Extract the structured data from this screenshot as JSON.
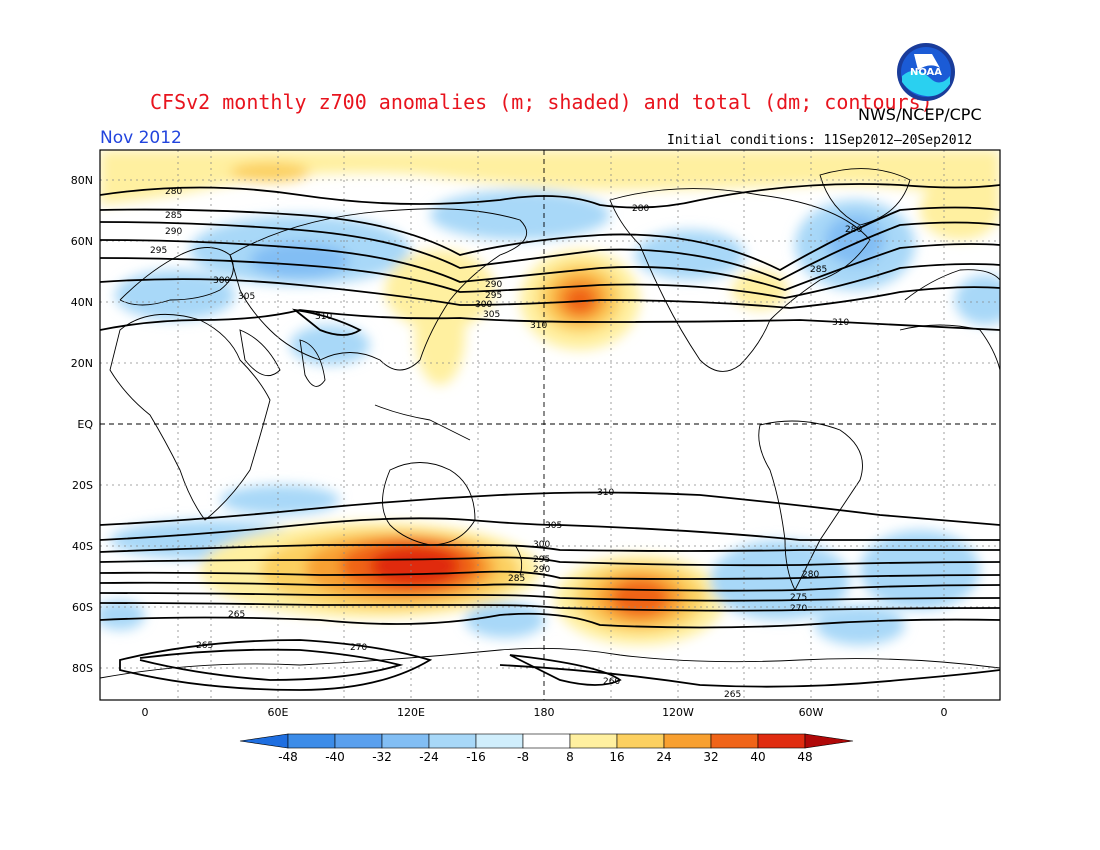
{
  "title": "CFSv2 monthly z700 anomalies (m; shaded) and total (dm; contours)",
  "agency": "NWS/NCEP/CPC",
  "logo_text": "NOAA",
  "period": "Nov 2012",
  "initial_conditions": "Initial conditions: 11Sep2012–20Sep2012",
  "map": {
    "lat_labels": [
      "80N",
      "60N",
      "40N",
      "20N",
      "EQ",
      "20S",
      "40S",
      "60S",
      "80S"
    ],
    "lon_labels": [
      "0",
      "60E",
      "120E",
      "180",
      "120W",
      "60W",
      "0"
    ],
    "contour_labels": [
      "280",
      "285",
      "290",
      "295",
      "300",
      "305",
      "310",
      "310",
      "310",
      "305",
      "300",
      "295",
      "290",
      "285",
      "280",
      "275",
      "270",
      "265",
      "270",
      "265",
      "260",
      "265",
      "280",
      "285",
      "290",
      "295",
      "300",
      "305",
      "310",
      "280"
    ]
  },
  "colorbar": {
    "ticks": [
      "-48",
      "-40",
      "-32",
      "-24",
      "-16",
      "-8",
      "8",
      "16",
      "24",
      "32",
      "40",
      "48"
    ],
    "colors": [
      "#1e6ee0",
      "#3c8ce8",
      "#5aa0ee",
      "#82bef4",
      "#a8d8f8",
      "#d0eefc",
      "#ffffff",
      "#fff0a0",
      "#fcd060",
      "#f8a030",
      "#f06418",
      "#e02c10",
      "#b00808"
    ]
  },
  "colors": {
    "title": "#e8141e",
    "period": "#2244dd"
  }
}
